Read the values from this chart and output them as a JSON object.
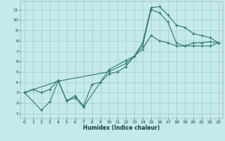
{
  "title": "",
  "xlabel": "Humidex (Indice chaleur)",
  "bg_color": "#c5eaea",
  "grid_color": "#aacece",
  "line_color": "#2d7a6a",
  "xlim": [
    -0.5,
    23.5
  ],
  "ylim": [
    0.5,
    11.8
  ],
  "xticks": [
    0,
    1,
    2,
    3,
    4,
    5,
    6,
    7,
    8,
    9,
    10,
    11,
    12,
    13,
    14,
    15,
    16,
    17,
    18,
    19,
    20,
    21,
    22,
    23
  ],
  "yticks": [
    1,
    2,
    3,
    4,
    5,
    6,
    7,
    8,
    9,
    10,
    11
  ],
  "line1_x": [
    0,
    1,
    2,
    3,
    4,
    5,
    6,
    7,
    8,
    9,
    10,
    11,
    12,
    13,
    14,
    15,
    16,
    17,
    18,
    19,
    20,
    21,
    22,
    23
  ],
  "line1_y": [
    3.0,
    3.3,
    3.0,
    3.3,
    4.2,
    2.2,
    2.7,
    1.7,
    3.8,
    4.0,
    4.8,
    5.0,
    5.5,
    6.5,
    7.8,
    11.2,
    11.3,
    10.5,
    9.5,
    9.3,
    8.7,
    8.5,
    8.3,
    7.8
  ],
  "line2_x": [
    0,
    2,
    3,
    4,
    5,
    6,
    7,
    10,
    12,
    13,
    14,
    15,
    16,
    17,
    18,
    19,
    20,
    21,
    22,
    23
  ],
  "line2_y": [
    3.0,
    1.3,
    2.1,
    4.1,
    2.2,
    2.5,
    1.6,
    5.2,
    6.1,
    6.5,
    7.5,
    11.0,
    10.7,
    9.8,
    7.8,
    7.5,
    7.5,
    7.5,
    7.5,
    7.8
  ],
  "line3_x": [
    0,
    4,
    10,
    12,
    14,
    15,
    16,
    17,
    18,
    19,
    20,
    21,
    22,
    23
  ],
  "line3_y": [
    3.0,
    4.1,
    5.0,
    5.8,
    7.2,
    8.5,
    8.0,
    7.8,
    7.5,
    7.5,
    7.8,
    7.8,
    7.9,
    7.8
  ]
}
